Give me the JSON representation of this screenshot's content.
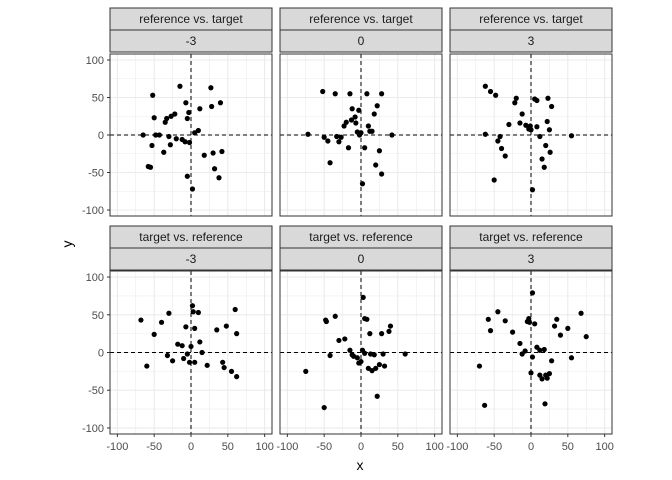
{
  "chart_data": {
    "type": "scatter",
    "xlabel": "x",
    "ylabel": "y",
    "xlim": [
      -110,
      110
    ],
    "ylim": [
      -108,
      108
    ],
    "x_ticks": [
      -100,
      -50,
      0,
      50,
      100
    ],
    "y_ticks": [
      -100,
      -50,
      0,
      50,
      100
    ],
    "x_tick_labels": [
      "-100",
      "-50",
      "0",
      "50",
      "100"
    ],
    "y_tick_labels": [
      "-100",
      "-50",
      "0",
      "50",
      "100"
    ],
    "grid": true,
    "reference_lines": {
      "x": 0,
      "y": 0,
      "style": "dashed"
    },
    "colors": {
      "point": "#000000",
      "strip_fill": "#d9d9d9",
      "panel_border": "#333333",
      "grid": "#ebebeb"
    },
    "rows": [
      {
        "label": "reference vs. target"
      },
      {
        "label": "target vs. reference"
      }
    ],
    "cols": [
      {
        "label": "-3"
      },
      {
        "label": "0"
      },
      {
        "label": "3"
      }
    ],
    "panels": [
      {
        "row": 0,
        "col": 0,
        "points": [
          [
            -65,
            0
          ],
          [
            -58,
            -42
          ],
          [
            -55,
            -43
          ],
          [
            -53,
            -14
          ],
          [
            -52,
            53
          ],
          [
            -50,
            23
          ],
          [
            -48,
            0
          ],
          [
            -43,
            0
          ],
          [
            -37,
            -23
          ],
          [
            -35,
            17
          ],
          [
            -33,
            22
          ],
          [
            -30,
            -2
          ],
          [
            -28,
            -13
          ],
          [
            -27,
            25
          ],
          [
            -22,
            28
          ],
          [
            -20,
            -5
          ],
          [
            -15,
            65
          ],
          [
            -12,
            -6
          ],
          [
            -8,
            -9
          ],
          [
            -7,
            43
          ],
          [
            -5,
            22
          ],
          [
            -3,
            30
          ],
          [
            -2,
            -10
          ],
          [
            -5,
            -55
          ],
          [
            2,
            -72
          ],
          [
            5,
            3
          ],
          [
            10,
            6
          ],
          [
            12,
            35
          ],
          [
            18,
            -27
          ],
          [
            27,
            63
          ],
          [
            28,
            38
          ],
          [
            30,
            -24
          ],
          [
            32,
            -45
          ],
          [
            38,
            -57
          ],
          [
            40,
            43
          ],
          [
            42,
            -22
          ]
        ]
      },
      {
        "row": 0,
        "col": 1,
        "points": [
          [
            -72,
            1
          ],
          [
            -52,
            58
          ],
          [
            -50,
            -3
          ],
          [
            -45,
            -8
          ],
          [
            -42,
            -37
          ],
          [
            -35,
            55
          ],
          [
            -33,
            -2
          ],
          [
            -30,
            -9
          ],
          [
            -27,
            -3
          ],
          [
            -23,
            12
          ],
          [
            -20,
            17
          ],
          [
            -17,
            -17
          ],
          [
            -15,
            55
          ],
          [
            -13,
            20
          ],
          [
            -12,
            35
          ],
          [
            -8,
            24
          ],
          [
            -7,
            16
          ],
          [
            -5,
            4
          ],
          [
            -3,
            33
          ],
          [
            -2,
            0
          ],
          [
            0,
            3
          ],
          [
            2,
            -65
          ],
          [
            5,
            -17
          ],
          [
            8,
            55
          ],
          [
            10,
            12
          ],
          [
            12,
            5
          ],
          [
            15,
            5
          ],
          [
            18,
            28
          ],
          [
            20,
            -40
          ],
          [
            22,
            39
          ],
          [
            25,
            -21
          ],
          [
            28,
            -52
          ],
          [
            28,
            55
          ],
          [
            42,
            0
          ]
        ]
      },
      {
        "row": 0,
        "col": 2,
        "points": [
          [
            -62,
            65
          ],
          [
            -62,
            1
          ],
          [
            -55,
            58
          ],
          [
            -50,
            -60
          ],
          [
            -48,
            53
          ],
          [
            -45,
            -8
          ],
          [
            -42,
            -2
          ],
          [
            -40,
            -18
          ],
          [
            -35,
            -28
          ],
          [
            -30,
            14
          ],
          [
            -22,
            43
          ],
          [
            -20,
            49
          ],
          [
            -15,
            16
          ],
          [
            -12,
            28
          ],
          [
            -7,
            13
          ],
          [
            -3,
            8
          ],
          [
            -1,
            12
          ],
          [
            0,
            7
          ],
          [
            2,
            -73
          ],
          [
            5,
            48
          ],
          [
            8,
            46
          ],
          [
            8,
            11
          ],
          [
            12,
            -2
          ],
          [
            15,
            -32
          ],
          [
            18,
            -43
          ],
          [
            20,
            -14
          ],
          [
            22,
            18
          ],
          [
            23,
            49
          ],
          [
            25,
            7
          ],
          [
            26,
            -23
          ],
          [
            28,
            38
          ],
          [
            55,
            -1
          ]
        ]
      },
      {
        "row": 1,
        "col": 0,
        "points": [
          [
            -68,
            43
          ],
          [
            -60,
            -18
          ],
          [
            -50,
            24
          ],
          [
            -40,
            40
          ],
          [
            -32,
            -4
          ],
          [
            -30,
            52
          ],
          [
            -25,
            -11
          ],
          [
            -18,
            11
          ],
          [
            -12,
            9
          ],
          [
            -10,
            -8
          ],
          [
            -7,
            34
          ],
          [
            -5,
            -2
          ],
          [
            -2,
            -13
          ],
          [
            0,
            8
          ],
          [
            2,
            62
          ],
          [
            3,
            54
          ],
          [
            5,
            -13
          ],
          [
            5,
            32
          ],
          [
            10,
            53
          ],
          [
            12,
            14
          ],
          [
            15,
            0
          ],
          [
            22,
            -17
          ],
          [
            35,
            30
          ],
          [
            43,
            -13
          ],
          [
            45,
            -20
          ],
          [
            48,
            35
          ],
          [
            55,
            -25
          ],
          [
            60,
            57
          ],
          [
            62,
            -32
          ],
          [
            62,
            25
          ]
        ]
      },
      {
        "row": 1,
        "col": 1,
        "points": [
          [
            -75,
            -25
          ],
          [
            -50,
            -73
          ],
          [
            -48,
            43
          ],
          [
            -47,
            41
          ],
          [
            -42,
            -4
          ],
          [
            -35,
            48
          ],
          [
            -30,
            16
          ],
          [
            -22,
            18
          ],
          [
            -15,
            3
          ],
          [
            -12,
            -3
          ],
          [
            -10,
            -5
          ],
          [
            -5,
            -7
          ],
          [
            -3,
            -14
          ],
          [
            0,
            -12
          ],
          [
            2,
            3
          ],
          [
            3,
            73
          ],
          [
            5,
            -1
          ],
          [
            5,
            45
          ],
          [
            8,
            44
          ],
          [
            10,
            -21
          ],
          [
            12,
            25
          ],
          [
            13,
            -2
          ],
          [
            15,
            -24
          ],
          [
            18,
            -3
          ],
          [
            20,
            -21
          ],
          [
            22,
            -58
          ],
          [
            25,
            -16
          ],
          [
            28,
            25
          ],
          [
            30,
            -2
          ],
          [
            32,
            -18
          ],
          [
            38,
            28
          ],
          [
            40,
            35
          ],
          [
            60,
            -2
          ]
        ]
      },
      {
        "row": 1,
        "col": 2,
        "points": [
          [
            -70,
            -18
          ],
          [
            -63,
            -70
          ],
          [
            -58,
            44
          ],
          [
            -55,
            29
          ],
          [
            -45,
            54
          ],
          [
            -35,
            42
          ],
          [
            -25,
            27
          ],
          [
            -15,
            12
          ],
          [
            -12,
            -2
          ],
          [
            -8,
            2
          ],
          [
            -5,
            41
          ],
          [
            -3,
            45
          ],
          [
            -2,
            40
          ],
          [
            0,
            -27
          ],
          [
            2,
            -6
          ],
          [
            2,
            79
          ],
          [
            5,
            38
          ],
          [
            8,
            7
          ],
          [
            12,
            3
          ],
          [
            12,
            -30
          ],
          [
            15,
            -35
          ],
          [
            18,
            4
          ],
          [
            19,
            -68
          ],
          [
            20,
            -30
          ],
          [
            22,
            -34
          ],
          [
            25,
            -28
          ],
          [
            28,
            -11
          ],
          [
            32,
            35
          ],
          [
            35,
            44
          ],
          [
            40,
            23
          ],
          [
            50,
            32
          ],
          [
            55,
            -7
          ],
          [
            68,
            52
          ],
          [
            75,
            21
          ]
        ]
      }
    ]
  }
}
